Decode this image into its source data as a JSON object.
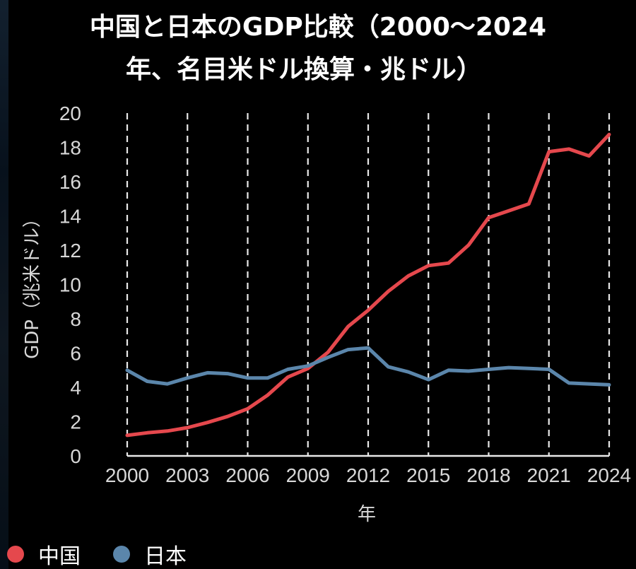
{
  "chart_data": {
    "type": "line",
    "title_line1": "中国と日本のGDP比較（2000〜2024",
    "title_line2": "年、名目米ドル換算・兆ドル）",
    "xlabel": "年",
    "ylabel": "GDP（兆米ドル）",
    "xlim": [
      2000,
      2024
    ],
    "ylim": [
      0,
      20
    ],
    "x_ticks": [
      "2000",
      "2003",
      "2006",
      "2009",
      "2012",
      "2015",
      "2018",
      "2021",
      "2024"
    ],
    "y_ticks": [
      "0",
      "2",
      "4",
      "6",
      "8",
      "10",
      "12",
      "14",
      "16",
      "18",
      "20"
    ],
    "grid": "vertical-dashed",
    "legend_position": "bottom-left",
    "x": [
      2000,
      2001,
      2002,
      2003,
      2004,
      2005,
      2006,
      2007,
      2008,
      2009,
      2010,
      2011,
      2012,
      2013,
      2014,
      2015,
      2016,
      2017,
      2018,
      2019,
      2020,
      2021,
      2022,
      2023,
      2024
    ],
    "series": [
      {
        "name": "中国",
        "color": "#e5484d",
        "values": [
          1.2,
          1.35,
          1.45,
          1.65,
          1.95,
          2.3,
          2.75,
          3.55,
          4.6,
          5.1,
          6.05,
          7.55,
          8.5,
          9.6,
          10.5,
          11.1,
          11.25,
          12.3,
          13.9,
          14.3,
          14.7,
          17.75,
          17.9,
          17.5,
          18.75
        ]
      },
      {
        "name": "日本",
        "color": "#5b86ab",
        "values": [
          5.0,
          4.35,
          4.2,
          4.55,
          4.85,
          4.8,
          4.55,
          4.55,
          5.05,
          5.25,
          5.75,
          6.2,
          6.3,
          5.2,
          4.9,
          4.45,
          5.0,
          4.95,
          5.05,
          5.15,
          5.1,
          5.05,
          4.25,
          4.2,
          4.15
        ]
      }
    ]
  }
}
